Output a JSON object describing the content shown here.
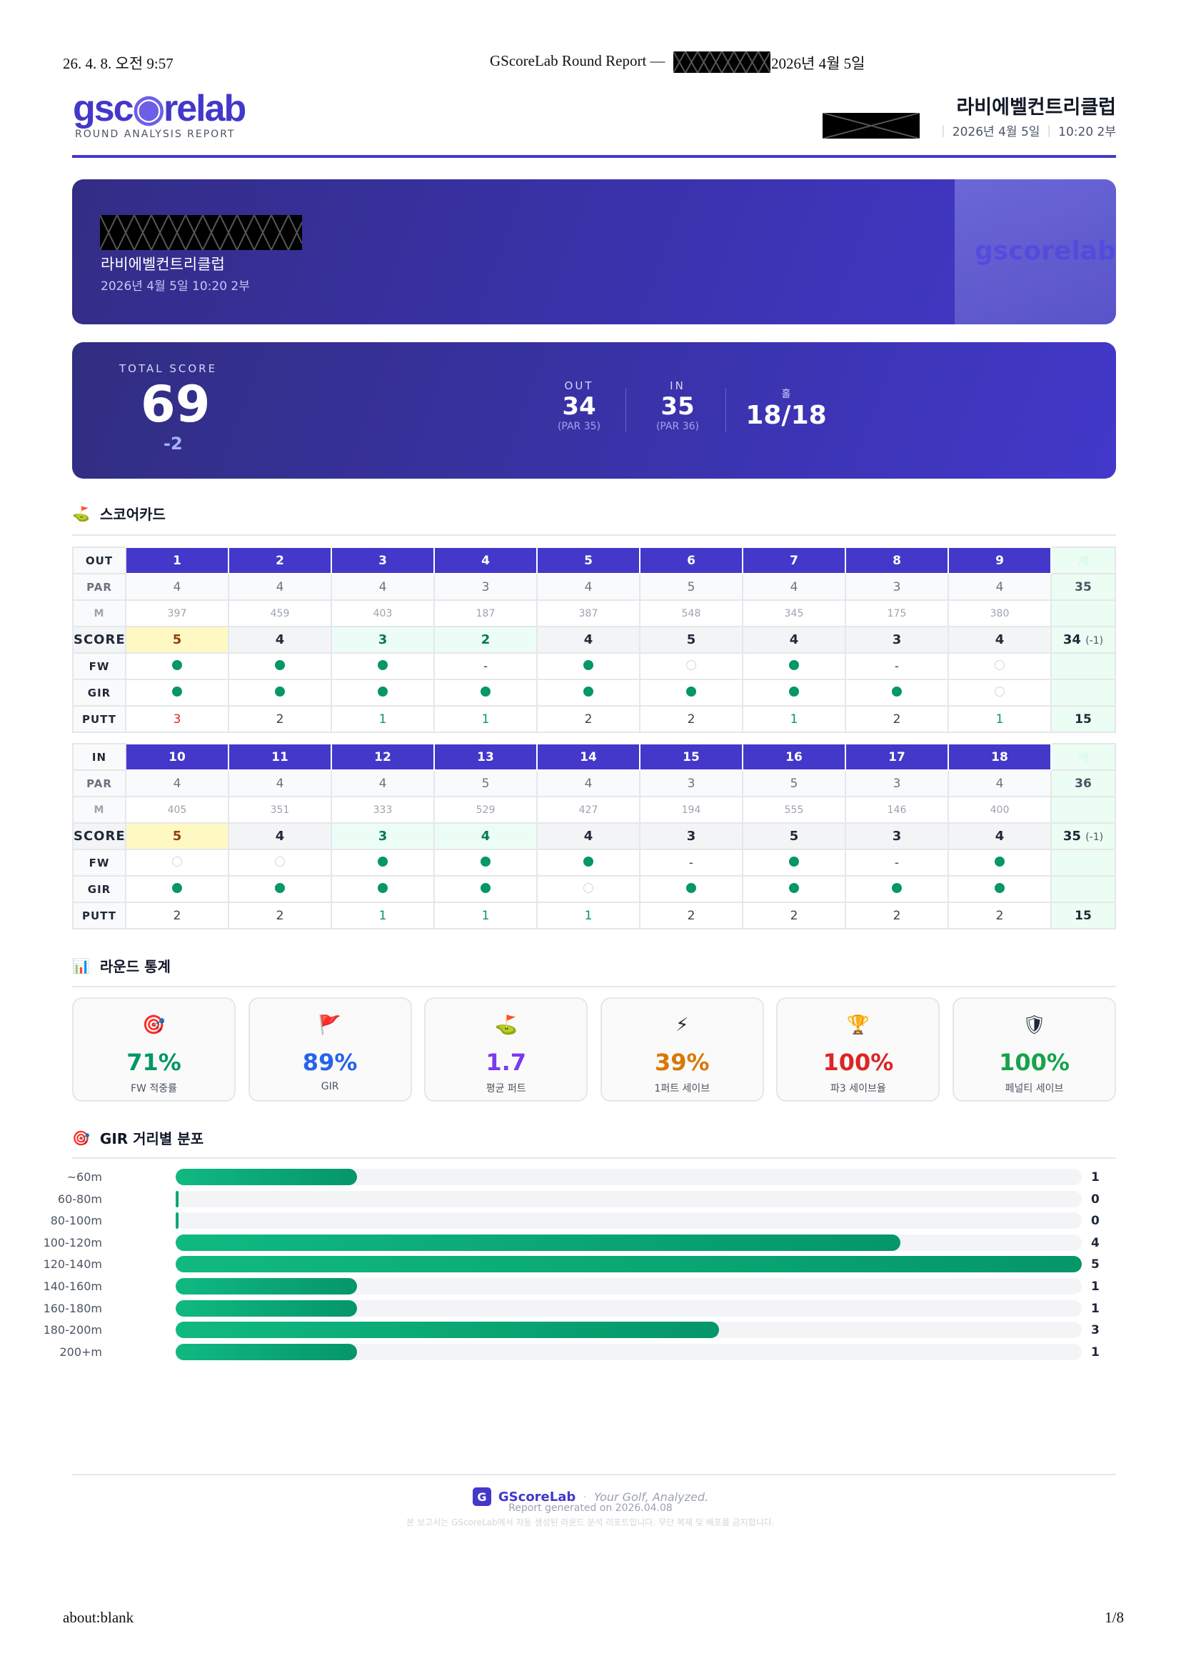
{
  "print_header": {
    "datetime": "26. 4. 8. 오전 9:57",
    "title_prefix": "GScoreLab Round Report —",
    "title_suffix": "2026년 4월 5일"
  },
  "print_footer": {
    "url": "about:blank",
    "page": "1/8"
  },
  "brand": {
    "logo": "gscorelab",
    "subtitle": "ROUND ANALYSIS REPORT",
    "accent": "#4338ca"
  },
  "header": {
    "club": "라비에벨컨트리클럽",
    "date": "2026년 4월 5일",
    "time": "10:20 2부"
  },
  "banner": {
    "club": "라비에벨컨트리클럽",
    "datetime": "2026년 4월 5일 10:20 2부",
    "watermark": "gscorelab"
  },
  "summary": {
    "total_label": "TOTAL SCORE",
    "total": "69",
    "to_par": "-2",
    "out_label": "OUT",
    "out": "34",
    "out_par": "(PAR 35)",
    "in_label": "IN",
    "in": "35",
    "in_par": "(PAR 36)",
    "holes_label": "홀",
    "holes": "18/18"
  },
  "scorecard": {
    "title": "스코어카드",
    "total_header": "계",
    "row_labels": {
      "par": "PAR",
      "m": "M",
      "score": "SCORE",
      "fw": "FW",
      "gir": "GIR",
      "putt": "PUTT"
    },
    "nines": [
      {
        "label": "OUT",
        "holes": [
          "1",
          "2",
          "3",
          "4",
          "5",
          "6",
          "7",
          "8",
          "9"
        ],
        "par": [
          "4",
          "4",
          "4",
          "3",
          "4",
          "5",
          "4",
          "3",
          "4"
        ],
        "par_total": "35",
        "m": [
          "397",
          "459",
          "403",
          "187",
          "387",
          "548",
          "345",
          "175",
          "380"
        ],
        "score": [
          "5",
          "4",
          "3",
          "2",
          "4",
          "5",
          "4",
          "3",
          "4"
        ],
        "score_total": "34",
        "score_total_diff": "(-1)",
        "fw": [
          "hit",
          "hit",
          "hit",
          "-",
          "hit",
          "miss",
          "hit",
          "-",
          "miss"
        ],
        "gir": [
          "hit",
          "hit",
          "hit",
          "hit",
          "hit",
          "hit",
          "hit",
          "hit",
          "miss"
        ],
        "putt": [
          "3",
          "2",
          "1",
          "1",
          "2",
          "2",
          "1",
          "2",
          "1"
        ],
        "putt_total": "15"
      },
      {
        "label": "IN",
        "holes": [
          "10",
          "11",
          "12",
          "13",
          "14",
          "15",
          "16",
          "17",
          "18"
        ],
        "par": [
          "4",
          "4",
          "4",
          "5",
          "4",
          "3",
          "5",
          "3",
          "4"
        ],
        "par_total": "36",
        "m": [
          "405",
          "351",
          "333",
          "529",
          "427",
          "194",
          "555",
          "146",
          "400"
        ],
        "score": [
          "5",
          "4",
          "3",
          "4",
          "4",
          "3",
          "5",
          "3",
          "4"
        ],
        "score_total": "35",
        "score_total_diff": "(-1)",
        "fw": [
          "miss",
          "miss",
          "hit",
          "hit",
          "hit",
          "-",
          "hit",
          "-",
          "hit"
        ],
        "gir": [
          "hit",
          "hit",
          "hit",
          "hit",
          "miss",
          "hit",
          "hit",
          "hit",
          "hit"
        ],
        "putt": [
          "2",
          "2",
          "1",
          "1",
          "1",
          "2",
          "2",
          "2",
          "2"
        ],
        "putt_total": "15"
      }
    ]
  },
  "stats": {
    "title": "라운드 통계",
    "cards": [
      {
        "icon": "target-icon",
        "glyph": "🎯",
        "value": "71%",
        "label": "FW 적중률",
        "color": "#059669"
      },
      {
        "icon": "flag-icon",
        "glyph": "🚩",
        "value": "89%",
        "label": "GIR",
        "color": "#2563eb"
      },
      {
        "icon": "golf-hole-icon",
        "glyph": "⛳",
        "value": "1.7",
        "label": "평균 퍼트",
        "color": "#7c3aed"
      },
      {
        "icon": "lightning-icon",
        "glyph": "⚡",
        "value": "39%",
        "label": "1퍼트 세이브",
        "color": "#d97706"
      },
      {
        "icon": "trophy-icon",
        "glyph": "🏆",
        "value": "100%",
        "label": "파3 세이브율",
        "color": "#dc2626"
      },
      {
        "icon": "shield-icon",
        "glyph": "🛡",
        "value": "100%",
        "label": "페널티 세이브",
        "color": "#16a34a"
      }
    ]
  },
  "gir_distribution": {
    "title": "GIR 거리별 분포",
    "max": 5,
    "rows": [
      {
        "label": "~60m",
        "value": 1
      },
      {
        "label": "60-80m",
        "value": 0
      },
      {
        "label": "80-100m",
        "value": 0
      },
      {
        "label": "100-120m",
        "value": 4
      },
      {
        "label": "120-140m",
        "value": 5
      },
      {
        "label": "140-160m",
        "value": 1
      },
      {
        "label": "160-180m",
        "value": 1
      },
      {
        "label": "180-200m",
        "value": 3
      },
      {
        "label": "200+m",
        "value": 1
      }
    ]
  },
  "footer": {
    "badge": "G",
    "brand": "GScoreLab",
    "dot": "·",
    "tagline": "Your Golf, Analyzed.",
    "generated": "Report generated on 2026.04.08",
    "notice": "본 보고서는 GScoreLab에서 자동 생성된 라운드 분석 리포트입니다. 무단 복제 및 배포를 금지합니다."
  }
}
